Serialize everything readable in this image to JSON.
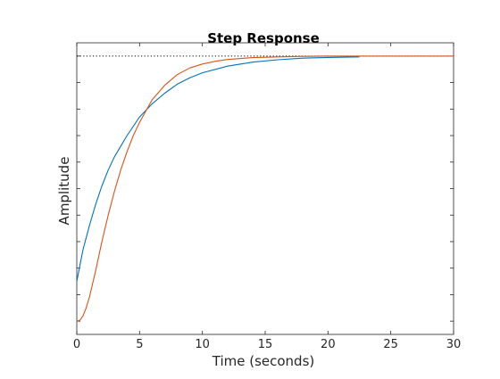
{
  "chart_data": {
    "type": "line",
    "title": "Step Response",
    "xlabel": "Time (seconds)",
    "ylabel": "Amplitude",
    "xlim": [
      0,
      30
    ],
    "ylim": [
      -0.05,
      1.05
    ],
    "x_ticks": [
      0,
      5,
      10,
      15,
      20,
      25,
      30
    ],
    "y_tick_labels_visible": false,
    "grid": false,
    "legend": "none",
    "reference_line": {
      "y": 1.0,
      "style": "dotted",
      "color": "#000000"
    },
    "series": [
      {
        "color": "#0072BD",
        "x": [
          0,
          0.5,
          1,
          1.5,
          2,
          2.5,
          3,
          4,
          5,
          6,
          7,
          8,
          9,
          10,
          12,
          14,
          16,
          18,
          20,
          22.5
        ],
        "y": [
          0.15,
          0.27,
          0.36,
          0.44,
          0.51,
          0.57,
          0.62,
          0.7,
          0.77,
          0.82,
          0.86,
          0.894,
          0.918,
          0.937,
          0.962,
          0.977,
          0.986,
          0.992,
          0.995,
          0.997
        ]
      },
      {
        "color": "#D95319",
        "x": [
          0,
          0.25,
          0.5,
          0.75,
          1,
          1.5,
          2,
          2.5,
          3,
          3.5,
          4,
          4.5,
          5,
          6,
          7,
          8,
          9,
          10,
          11,
          12,
          14,
          16,
          18,
          20,
          25,
          30
        ],
        "y": [
          0.0,
          0.003,
          0.02,
          0.05,
          0.09,
          0.19,
          0.3,
          0.4,
          0.49,
          0.57,
          0.64,
          0.7,
          0.75,
          0.835,
          0.89,
          0.93,
          0.955,
          0.97,
          0.98,
          0.987,
          0.994,
          0.997,
          0.999,
          1.0,
          1.0,
          1.0
        ]
      }
    ]
  }
}
